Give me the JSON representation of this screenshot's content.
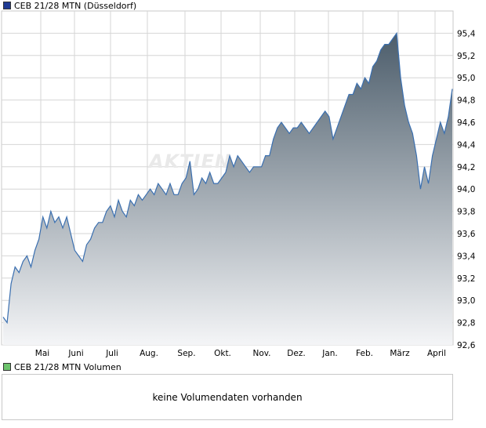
{
  "legend_price": {
    "label": "CEB 21/28 MTN (Düsseldorf)",
    "color": "#1f3a93"
  },
  "legend_volume": {
    "label": "CEB 21/28 MTN Volumen",
    "color": "#6cc36c"
  },
  "volume_panel": {
    "message": "keine Volumendaten vorhanden"
  },
  "watermark": "AKTIEN",
  "chart_data": {
    "type": "area",
    "y_ticks": [
      "95,4",
      "95,2",
      "95,0",
      "94,8",
      "94,6",
      "94,4",
      "94,2",
      "94,0",
      "93,8",
      "93,6",
      "93,4",
      "93,2",
      "93,0",
      "92,8",
      "92,6"
    ],
    "x_ticks": [
      "Mai",
      "Juni",
      "Juli",
      "Aug.",
      "Sep.",
      "Okt.",
      "Nov.",
      "Dez.",
      "Jan.",
      "Feb.",
      "März",
      "April"
    ],
    "ylim": [
      92.6,
      95.6
    ],
    "grid": true,
    "line_color": "#3a6fb0",
    "fill_top_color": "#4c5d6b",
    "fill_bottom_color": "#f4f5f7",
    "values": [
      92.85,
      92.8,
      93.15,
      93.3,
      93.25,
      93.35,
      93.4,
      93.3,
      93.45,
      93.55,
      93.75,
      93.65,
      93.8,
      93.7,
      93.75,
      93.65,
      93.75,
      93.6,
      93.45,
      93.4,
      93.35,
      93.5,
      93.55,
      93.65,
      93.7,
      93.7,
      93.8,
      93.85,
      93.75,
      93.9,
      93.8,
      93.75,
      93.9,
      93.85,
      93.95,
      93.9,
      93.95,
      94.0,
      93.95,
      94.05,
      94.0,
      93.95,
      94.05,
      93.95,
      93.95,
      94.05,
      94.1,
      94.25,
      93.95,
      94.0,
      94.1,
      94.05,
      94.15,
      94.05,
      94.05,
      94.1,
      94.15,
      94.3,
      94.2,
      94.3,
      94.25,
      94.2,
      94.15,
      94.2,
      94.2,
      94.2,
      94.3,
      94.3,
      94.45,
      94.55,
      94.6,
      94.55,
      94.5,
      94.55,
      94.55,
      94.6,
      94.55,
      94.5,
      94.55,
      94.6,
      94.65,
      94.7,
      94.65,
      94.45,
      94.55,
      94.65,
      94.75,
      94.85,
      94.85,
      94.95,
      94.9,
      95.0,
      94.95,
      95.1,
      95.15,
      95.25,
      95.3,
      95.3,
      95.35,
      95.4,
      95.0,
      94.75,
      94.6,
      94.5,
      94.3,
      94.0,
      94.2,
      94.05,
      94.3,
      94.45,
      94.6,
      94.5,
      94.65,
      94.9
    ]
  }
}
